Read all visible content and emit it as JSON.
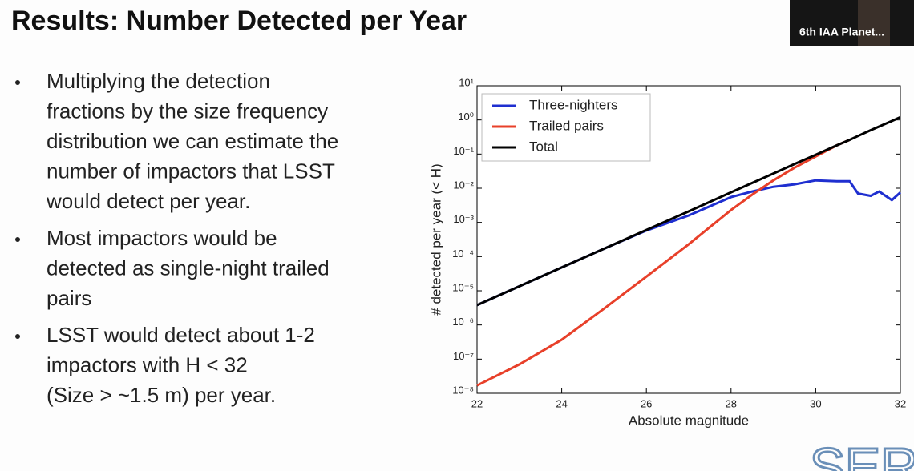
{
  "slide": {
    "title": "Results: Number Detected per Year",
    "bullets": [
      [
        "Multiplying the detection",
        "fractions by the size frequency",
        "distribution we can estimate the",
        "number of impactors that LSST",
        "would detect per year."
      ],
      [
        "Most impactors would be",
        "detected as single-night trailed",
        "pairs"
      ],
      [
        "LSST would detect about 1-2",
        "impactors with H < 32",
        "(Size > ~1.5 m) per year."
      ]
    ],
    "video_label": "6th IAA Planet...",
    "logo": "SERV"
  },
  "chart_data": {
    "type": "line",
    "xlabel": "Absolute magnitude",
    "ylabel": "# detected per year   (< H)",
    "x": [
      22,
      23,
      24,
      25,
      26,
      27,
      28,
      28.5,
      29,
      29.5,
      30,
      30.5,
      30.8,
      31,
      31.3,
      31.5,
      31.8,
      32
    ],
    "series": [
      {
        "name": "Three-nighters",
        "color": "#1f2fd0",
        "values": [
          3.8e-06,
          1.35e-05,
          4.8e-05,
          0.00017,
          0.00058,
          0.0016,
          0.0055,
          0.008,
          0.011,
          0.013,
          0.017,
          0.016,
          0.016,
          0.007,
          0.006,
          0.008,
          0.0045,
          0.0075
        ]
      },
      {
        "name": "Trailed pairs",
        "color": "#e8402a",
        "values": [
          1.7e-08,
          7e-08,
          3.7e-07,
          3e-06,
          2.6e-05,
          0.00023,
          0.0023,
          0.0065,
          0.017,
          0.04,
          0.085,
          0.18,
          0.26,
          null,
          null,
          null,
          null,
          null
        ]
      },
      {
        "name": "Total",
        "color": "#000000",
        "values": [
          3.8e-06,
          1.35e-05,
          4.8e-05,
          0.00017,
          0.0006,
          0.0021,
          0.0076,
          0.0143,
          0.027,
          0.051,
          0.095,
          0.18,
          0.26,
          0.34,
          0.5,
          0.64,
          0.93,
          1.2
        ]
      }
    ],
    "xlim": [
      22,
      32
    ],
    "xticks": [
      22,
      24,
      26,
      28,
      30,
      32
    ],
    "ylim": [
      1e-08,
      10
    ],
    "ylog": true,
    "yticks": [
      {
        "value": 10,
        "label": "10¹"
      },
      {
        "value": 1,
        "label": "10⁰"
      },
      {
        "value": 0.1,
        "label": "10⁻¹"
      },
      {
        "value": 0.01,
        "label": "10⁻²"
      },
      {
        "value": 0.001,
        "label": "10⁻³"
      },
      {
        "value": 0.0001,
        "label": "10⁻⁴"
      },
      {
        "value": 1e-05,
        "label": "10⁻⁵"
      },
      {
        "value": 1e-06,
        "label": "10⁻⁶"
      },
      {
        "value": 1e-07,
        "label": "10⁻⁷"
      },
      {
        "value": 1e-08,
        "label": "10⁻⁸"
      }
    ],
    "legend": "upper left"
  }
}
